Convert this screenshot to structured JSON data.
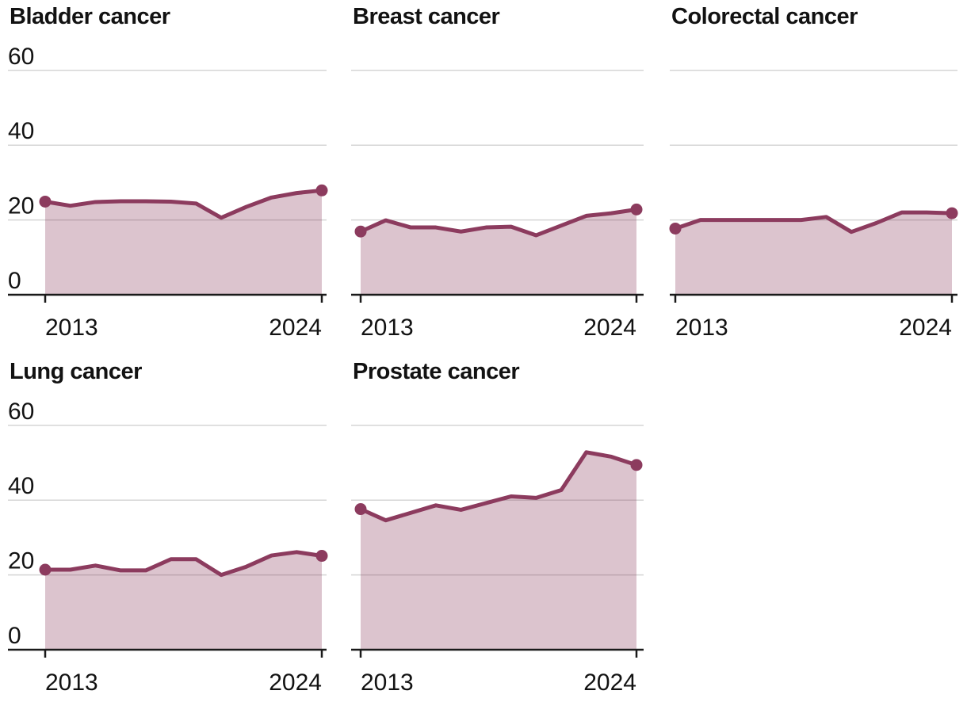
{
  "colors": {
    "line": "#8c3b5e",
    "fill_opacity": 0.3,
    "gridline": "#d5d5d5",
    "axis": "#1a1a1a",
    "text": "#121212"
  },
  "chart_data": [
    {
      "type": "area",
      "title": "Bladder cancer",
      "x": [
        2013,
        2014,
        2015,
        2016,
        2017,
        2018,
        2019,
        2020,
        2021,
        2022,
        2023,
        2024
      ],
      "values": [
        24.9,
        23.8,
        24.8,
        25.0,
        25.0,
        24.9,
        24.4,
        20.6,
        23.5,
        26.0,
        27.2,
        27.9
      ],
      "ylim": [
        0,
        60
      ],
      "y_ticks": [
        0,
        20,
        40,
        60
      ],
      "x_tick_labels": [
        "2013",
        "2024"
      ],
      "show_y_axis_labels": true,
      "grid": true,
      "legend_position": "none",
      "endpoint_dots": true
    },
    {
      "type": "area",
      "title": "Breast cancer",
      "x": [
        2013,
        2014,
        2015,
        2016,
        2017,
        2018,
        2019,
        2020,
        2021,
        2022,
        2023,
        2024
      ],
      "values": [
        16.9,
        19.9,
        18.0,
        18.0,
        16.9,
        18.0,
        18.2,
        15.9,
        18.5,
        21.1,
        21.8,
        22.8
      ],
      "ylim": [
        0,
        60
      ],
      "y_ticks": [
        0,
        20,
        40,
        60
      ],
      "x_tick_labels": [
        "2013",
        "2024"
      ],
      "show_y_axis_labels": false,
      "grid": true,
      "legend_position": "none",
      "endpoint_dots": true
    },
    {
      "type": "area",
      "title": "Colorectal cancer",
      "x": [
        2013,
        2014,
        2015,
        2016,
        2017,
        2018,
        2019,
        2020,
        2021,
        2022,
        2023,
        2024
      ],
      "values": [
        17.7,
        20.0,
        20.0,
        20.0,
        20.0,
        20.0,
        20.8,
        16.8,
        19.2,
        22.0,
        22.0,
        21.8
      ],
      "ylim": [
        0,
        60
      ],
      "y_ticks": [
        0,
        20,
        40,
        60
      ],
      "x_tick_labels": [
        "2013",
        "2024"
      ],
      "show_y_axis_labels": false,
      "grid": true,
      "legend_position": "none",
      "endpoint_dots": true
    },
    {
      "type": "area",
      "title": "Lung cancer",
      "x": [
        2013,
        2014,
        2015,
        2016,
        2017,
        2018,
        2019,
        2020,
        2021,
        2022,
        2023,
        2024
      ],
      "values": [
        21.4,
        21.4,
        22.5,
        21.2,
        21.2,
        24.2,
        24.2,
        20.0,
        22.2,
        25.2,
        26.1,
        25.1
      ],
      "ylim": [
        0,
        60
      ],
      "y_ticks": [
        0,
        20,
        40,
        60
      ],
      "x_tick_labels": [
        "2013",
        "2024"
      ],
      "show_y_axis_labels": true,
      "grid": true,
      "legend_position": "none",
      "endpoint_dots": true
    },
    {
      "type": "area",
      "title": "Prostate cancer",
      "x": [
        2013,
        2014,
        2015,
        2016,
        2017,
        2018,
        2019,
        2020,
        2021,
        2022,
        2023,
        2024
      ],
      "values": [
        37.6,
        34.6,
        36.6,
        38.6,
        37.4,
        39.2,
        41.0,
        40.6,
        42.7,
        52.8,
        51.6,
        49.4
      ],
      "ylim": [
        0,
        60
      ],
      "y_ticks": [
        0,
        20,
        40,
        60
      ],
      "x_tick_labels": [
        "2013",
        "2024"
      ],
      "show_y_axis_labels": false,
      "grid": true,
      "legend_position": "none",
      "endpoint_dots": true
    }
  ]
}
